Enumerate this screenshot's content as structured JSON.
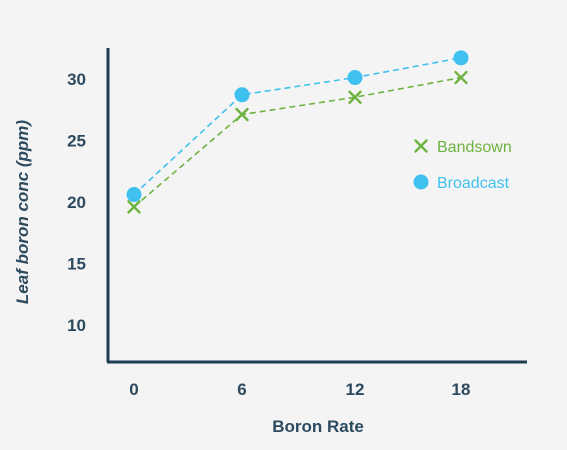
{
  "chart_data": {
    "type": "line",
    "xlabel": "Boron Rate",
    "ylabel": "Leaf boron conc (ppm)",
    "categories": [
      "0",
      "6",
      "12",
      "18"
    ],
    "y_ticks": [
      "10",
      "15",
      "20",
      "25",
      "30"
    ],
    "ylim": [
      7,
      32.5
    ],
    "grid": false,
    "legend_position": "right",
    "series": [
      {
        "name": "Bandsown",
        "marker": "x",
        "color": "#6db33f",
        "values": [
          19.6,
          27.1,
          28.5,
          30.1
        ]
      },
      {
        "name": "Broadcast",
        "marker": "circle",
        "color": "#3fc1ef",
        "values": [
          20.6,
          28.7,
          30.1,
          31.7
        ]
      }
    ],
    "colors": {
      "axis": "#1c3d52",
      "text": "#2d4a5f",
      "background": "#f4f4f4"
    }
  }
}
